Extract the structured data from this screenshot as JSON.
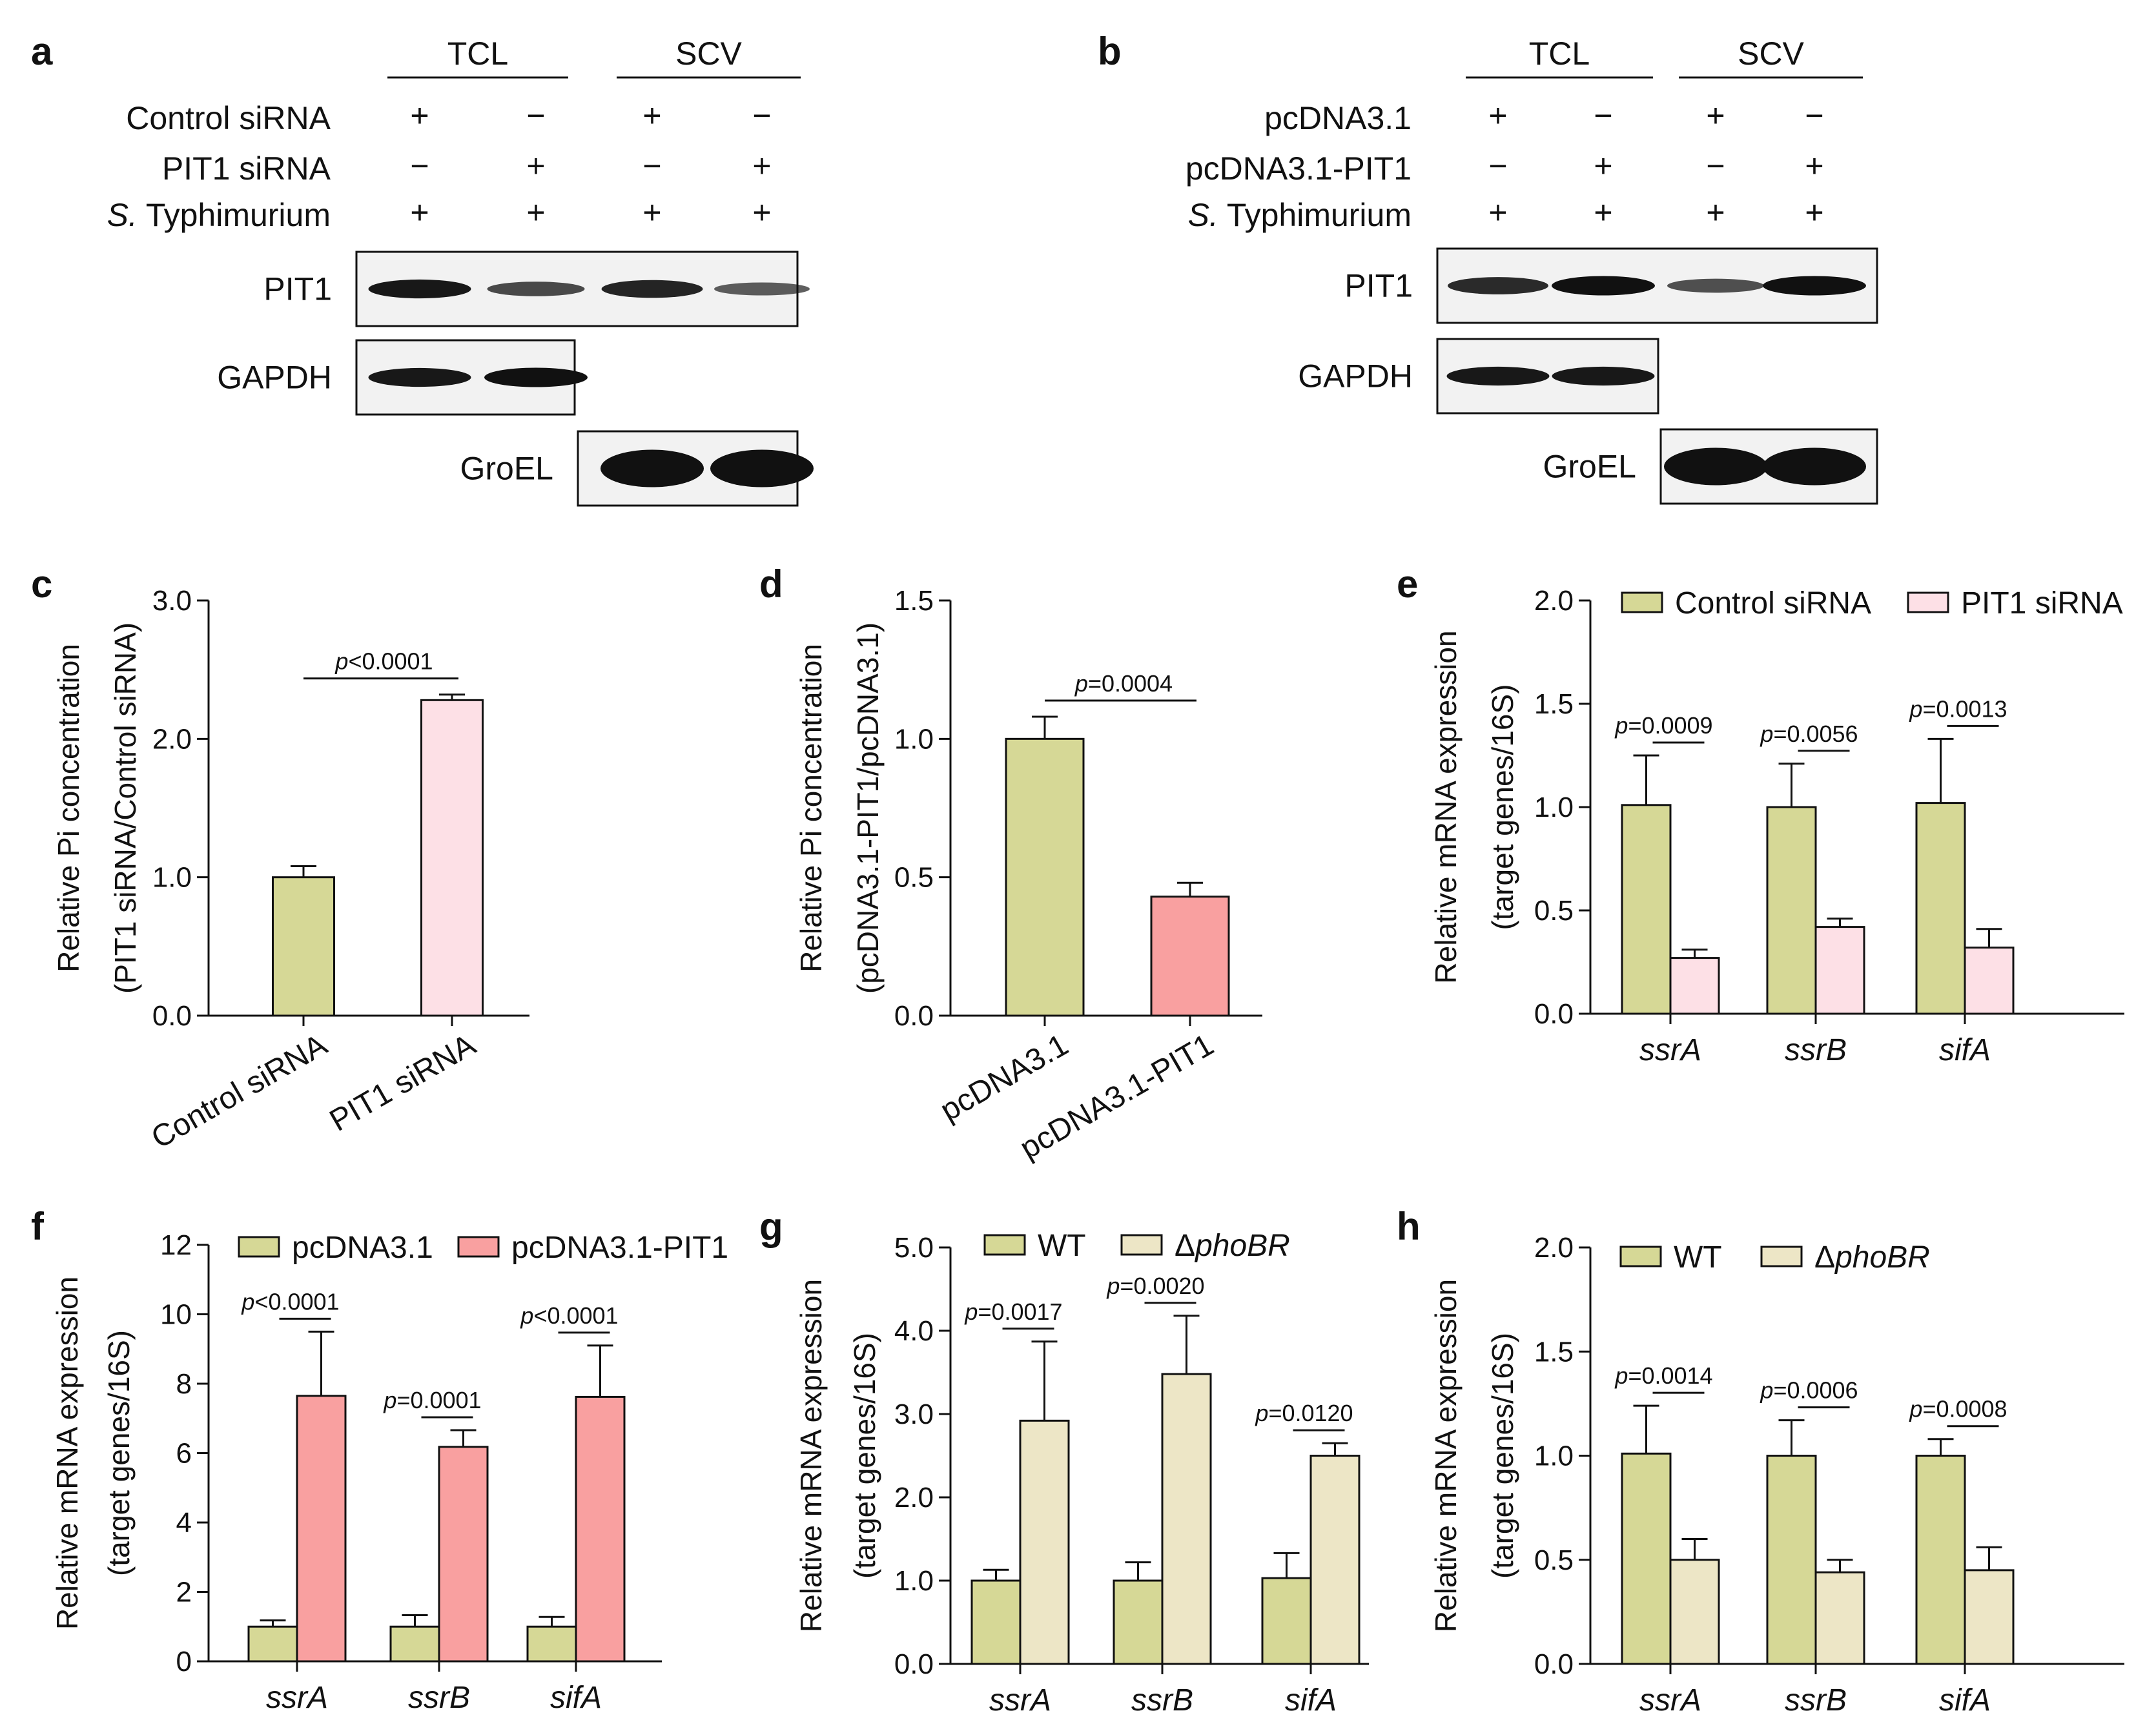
{
  "colors": {
    "olive": "#d6d896",
    "pink_light": "#fde0e6",
    "salmon": "#f9a0a0",
    "cream": "#ede6c6",
    "band": "#111111",
    "blot_bg": "#f2f2f2",
    "axis": "#111111"
  },
  "blot_a": {
    "letter": "a",
    "group_labels": [
      "TCL",
      "SCV"
    ],
    "rows": [
      {
        "label": "Control siRNA",
        "italic_prefix": "",
        "signs": [
          "+",
          "−",
          "+",
          "−"
        ]
      },
      {
        "label": "PIT1 siRNA",
        "italic_prefix": "",
        "signs": [
          "−",
          "+",
          "−",
          "+"
        ]
      },
      {
        "label": " Typhimurium",
        "italic_prefix": "S.",
        "signs": [
          "+",
          "+",
          "+",
          "+"
        ]
      }
    ],
    "blots": [
      {
        "label": "PIT1",
        "bands": [
          0.95,
          0.55,
          0.85,
          0.4
        ]
      },
      {
        "label": "GAPDH",
        "bands": [
          0.95,
          1.0
        ]
      },
      {
        "label": "GroEL",
        "bands": [
          1.0,
          1.0
        ]
      }
    ]
  },
  "blot_b": {
    "letter": "b",
    "group_labels": [
      "TCL",
      "SCV"
    ],
    "rows": [
      {
        "label": "pcDNA3.1",
        "italic_prefix": "",
        "signs": [
          "+",
          "−",
          "+",
          "−"
        ]
      },
      {
        "label": "pcDNA3.1-PIT1",
        "italic_prefix": "",
        "signs": [
          "−",
          "+",
          "−",
          "+"
        ]
      },
      {
        "label": " Typhimurium",
        "italic_prefix": "S.",
        "signs": [
          "+",
          "+",
          "+",
          "+"
        ]
      }
    ],
    "blots": [
      {
        "label": "PIT1",
        "bands": [
          0.8,
          1.0,
          0.5,
          1.0
        ]
      },
      {
        "label": "GAPDH",
        "bands": [
          0.95,
          0.95
        ]
      },
      {
        "label": "GroEL",
        "bands": [
          1.0,
          1.0
        ]
      }
    ]
  },
  "chart_data": [
    {
      "panel": "c",
      "type": "bar",
      "categories": [
        "Control siRNA",
        "PIT1 siRNA"
      ],
      "values": [
        1.0,
        2.28
      ],
      "errors": [
        0.08,
        0.04
      ],
      "bar_colors": [
        "olive",
        "pink_light"
      ],
      "ylabel_lines": [
        "Relative Pi concentration",
        "(PIT1 siRNA/Control siRNA)"
      ],
      "ylim": [
        0,
        3.0
      ],
      "yticks": [
        "0.0",
        "1.0",
        "2.0",
        "3.0"
      ],
      "annotations": [
        {
          "italic": "p",
          "text": "<0.0001"
        }
      ]
    },
    {
      "panel": "d",
      "type": "bar",
      "categories": [
        "pcDNA3.1",
        "pcDNA3.1-PIT1"
      ],
      "values": [
        1.0,
        0.43
      ],
      "errors": [
        0.08,
        0.05
      ],
      "bar_colors": [
        "olive",
        "salmon"
      ],
      "ylabel_lines": [
        "Relative Pi concentration",
        "(pcDNA3.1-PIT1/pcDNA3.1)"
      ],
      "ylim": [
        0,
        1.5
      ],
      "yticks": [
        "0.0",
        "0.5",
        "1.0",
        "1.5"
      ],
      "annotations": [
        {
          "italic": "p",
          "text": "=0.0004"
        }
      ]
    },
    {
      "panel": "e",
      "type": "bar",
      "categories": [
        "ssrA",
        "ssrB",
        "sifA"
      ],
      "series": [
        {
          "name": "Control siRNA",
          "color": "olive",
          "values": [
            1.01,
            1.0,
            1.02
          ],
          "errors": [
            0.24,
            0.21,
            0.31
          ]
        },
        {
          "name": "PIT1 siRNA",
          "color": "pink_light",
          "values": [
            0.27,
            0.42,
            0.32
          ],
          "errors": [
            0.04,
            0.04,
            0.09
          ]
        }
      ],
      "ylabel_lines": [
        "Relative mRNA expression",
        "(target genes/16S)"
      ],
      "ylim": [
        0,
        2.0
      ],
      "yticks": [
        "0.0",
        "0.5",
        "1.0",
        "1.5",
        "2.0"
      ],
      "annotations": [
        {
          "italic": "p",
          "text": "=0.0009"
        },
        {
          "italic": "p",
          "text": "=0.0056"
        },
        {
          "italic": "p",
          "text": "=0.0013"
        }
      ]
    },
    {
      "panel": "f",
      "type": "bar",
      "categories": [
        "ssrA",
        "ssrB",
        "sifA"
      ],
      "series": [
        {
          "name": "pcDNA3.1",
          "color": "olive",
          "values": [
            1.0,
            1.0,
            1.0
          ],
          "errors": [
            0.18,
            0.33,
            0.28
          ]
        },
        {
          "name": "pcDNA3.1-PIT1",
          "color": "salmon",
          "values": [
            7.65,
            6.18,
            7.62
          ],
          "errors": [
            1.85,
            0.48,
            1.48
          ]
        }
      ],
      "ylabel_lines": [
        "Relative mRNA expression",
        "(target genes/16S)"
      ],
      "ylim": [
        0,
        12
      ],
      "yticks": [
        "0",
        "2",
        "4",
        "6",
        "8",
        "10",
        "12"
      ],
      "annotations": [
        {
          "italic": "p",
          "text": "<0.0001"
        },
        {
          "italic": "p",
          "text": "=0.0001"
        },
        {
          "italic": "p",
          "text": "<0.0001"
        }
      ]
    },
    {
      "panel": "g",
      "type": "bar",
      "categories": [
        "ssrA",
        "ssrB",
        "sifA"
      ],
      "series": [
        {
          "name": "WT",
          "color": "olive",
          "values": [
            1.0,
            1.0,
            1.03
          ],
          "errors": [
            0.13,
            0.22,
            0.3
          ]
        },
        {
          "name": "ΔphoBR",
          "name_prefix": "Δ",
          "name_italic": "phoBR",
          "color": "cream",
          "values": [
            2.92,
            3.48,
            2.5
          ],
          "errors": [
            0.95,
            0.7,
            0.15
          ]
        }
      ],
      "ylabel_lines": [
        "Relative mRNA expression",
        "(target genes/16S)"
      ],
      "ylim": [
        0,
        5.0
      ],
      "yticks": [
        "0.0",
        "1.0",
        "2.0",
        "3.0",
        "4.0",
        "5.0"
      ],
      "annotations": [
        {
          "italic": "p",
          "text": "=0.0017"
        },
        {
          "italic": "p",
          "text": "=0.0020"
        },
        {
          "italic": "p",
          "text": "=0.0120"
        }
      ]
    },
    {
      "panel": "h",
      "type": "bar",
      "categories": [
        "ssrA",
        "ssrB",
        "sifA"
      ],
      "series": [
        {
          "name": "WT",
          "color": "olive",
          "values": [
            1.01,
            1.0,
            1.0
          ],
          "errors": [
            0.23,
            0.17,
            0.08
          ]
        },
        {
          "name": "ΔphoBR",
          "name_prefix": "Δ",
          "name_italic": "phoBR",
          "color": "cream",
          "values": [
            0.5,
            0.44,
            0.45
          ],
          "errors": [
            0.1,
            0.06,
            0.11
          ]
        }
      ],
      "ylabel_lines": [
        "Relative mRNA expression",
        "(target genes/16S)"
      ],
      "ylim": [
        0,
        2.0
      ],
      "yticks": [
        "0.0",
        "0.5",
        "1.0",
        "1.5",
        "2.0"
      ],
      "annotations": [
        {
          "italic": "p",
          "text": "=0.0014"
        },
        {
          "italic": "p",
          "text": "=0.0006"
        },
        {
          "italic": "p",
          "text": "=0.0008"
        }
      ]
    }
  ]
}
